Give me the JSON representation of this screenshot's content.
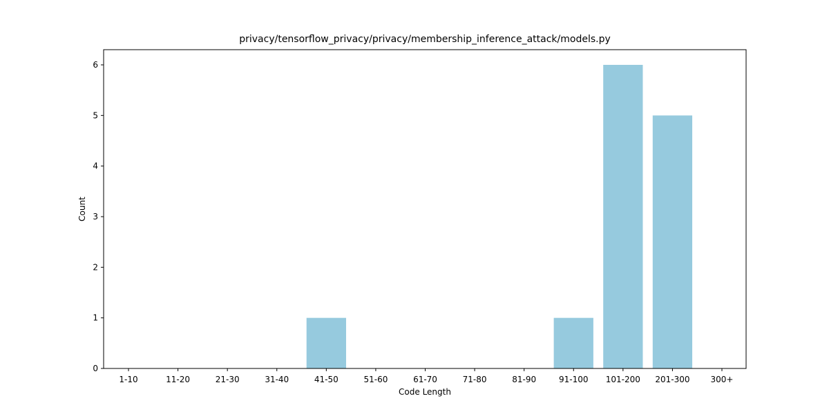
{
  "chart_data": {
    "type": "bar",
    "title": "privacy/tensorflow_privacy/privacy/membership_inference_attack/models.py",
    "xlabel": "Code Length",
    "ylabel": "Count",
    "categories": [
      "1-10",
      "11-20",
      "21-30",
      "31-40",
      "41-50",
      "51-60",
      "61-70",
      "71-80",
      "81-90",
      "91-100",
      "101-200",
      "201-300",
      "300+"
    ],
    "values": [
      0,
      0,
      0,
      0,
      1,
      0,
      0,
      0,
      0,
      1,
      6,
      5,
      0
    ],
    "ylim": [
      0,
      6.3
    ],
    "yticks": [
      0,
      1,
      2,
      3,
      4,
      5,
      6
    ],
    "bar_color": "#96cade",
    "grid": false,
    "legend": "none"
  }
}
